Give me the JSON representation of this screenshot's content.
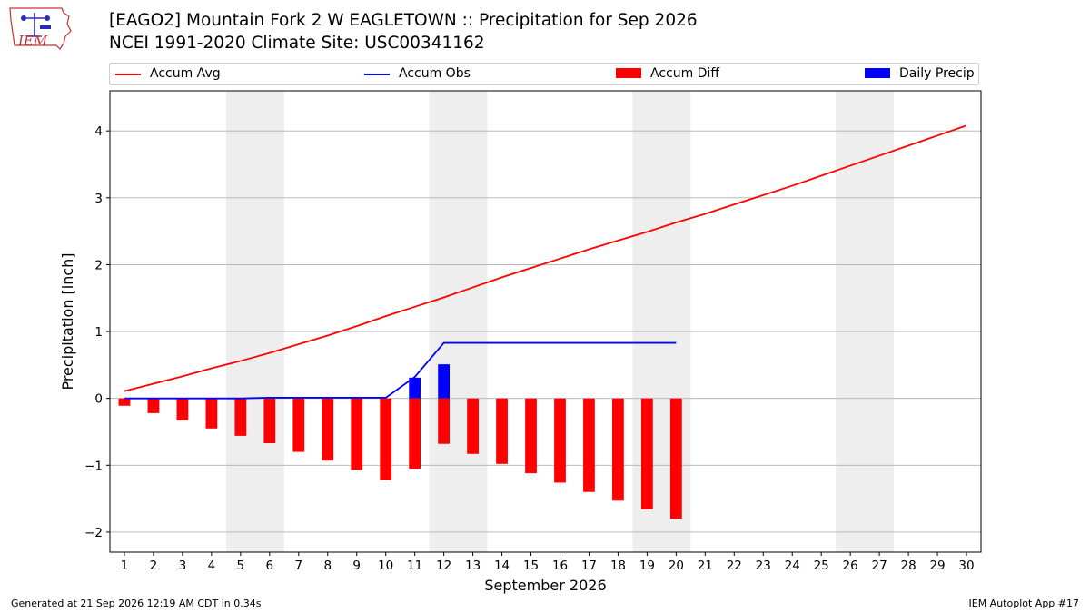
{
  "header": {
    "title": "[EAGO2] Mountain Fork 2 W EAGLETOWN :: Precipitation for Sep 2026",
    "subtitle": "NCEI 1991-2020 Climate Site: USC00341162",
    "logo_text": "IEM"
  },
  "footer": {
    "generated": "Generated at 21 Sep 2026 12:19 AM CDT in 0.34s",
    "app": "IEM Autoplot App #17"
  },
  "legend": {
    "accum_avg": "Accum Avg",
    "accum_obs": "Accum Obs",
    "accum_diff": "Accum Diff",
    "daily_precip": "Daily Precip"
  },
  "colors": {
    "accum_avg": "#ff0000",
    "accum_obs": "#0000ff",
    "accum_diff": "#ff0000",
    "daily_precip": "#0000ff",
    "weekend_shade": "#eeeeee",
    "grid": "#b0b0b0"
  },
  "chart_data": {
    "type": "bar",
    "title": "[EAGO2] Mountain Fork 2 W EAGLETOWN :: Precipitation for Sep 2026",
    "xlabel": "September 2026",
    "ylabel": "Precipitation [inch]",
    "xlim": [
      0.5,
      30.5
    ],
    "ylim": [
      -2.3,
      4.6
    ],
    "x_ticks": [
      1,
      2,
      3,
      4,
      5,
      6,
      7,
      8,
      9,
      10,
      11,
      12,
      13,
      14,
      15,
      16,
      17,
      18,
      19,
      20,
      21,
      22,
      23,
      24,
      25,
      26,
      27,
      28,
      29,
      30
    ],
    "y_ticks": [
      -2,
      -1,
      0,
      1,
      2,
      3,
      4
    ],
    "y_tick_labels": [
      "−2",
      "−1",
      "0",
      "1",
      "2",
      "3",
      "4"
    ],
    "grid": "horizontal",
    "legend_placement": "top",
    "weekend_shading": [
      [
        4.5,
        6.5
      ],
      [
        11.5,
        13.5
      ],
      [
        18.5,
        20.5
      ],
      [
        25.5,
        27.5
      ]
    ],
    "series": [
      {
        "name": "Accum Avg",
        "type": "line",
        "x": [
          1,
          2,
          3,
          4,
          5,
          6,
          7,
          8,
          9,
          10,
          11,
          12,
          13,
          14,
          15,
          16,
          17,
          18,
          19,
          20,
          21,
          22,
          23,
          24,
          25,
          26,
          27,
          28,
          29,
          30
        ],
        "values": [
          0.11,
          0.22,
          0.33,
          0.45,
          0.56,
          0.68,
          0.81,
          0.94,
          1.08,
          1.23,
          1.37,
          1.51,
          1.66,
          1.81,
          1.95,
          2.09,
          2.23,
          2.36,
          2.49,
          2.63,
          2.76,
          2.9,
          3.04,
          3.18,
          3.33,
          3.48,
          3.63,
          3.78,
          3.93,
          4.08
        ]
      },
      {
        "name": "Accum Obs",
        "type": "line",
        "x": [
          1,
          2,
          3,
          4,
          5,
          6,
          7,
          8,
          9,
          10,
          11,
          12,
          13,
          14,
          15,
          16,
          17,
          18,
          19,
          20
        ],
        "values": [
          0.0,
          0.0,
          0.0,
          0.0,
          0.0,
          0.01,
          0.01,
          0.01,
          0.01,
          0.01,
          0.32,
          0.83,
          0.83,
          0.83,
          0.83,
          0.83,
          0.83,
          0.83,
          0.83,
          0.83
        ]
      },
      {
        "name": "Accum Diff",
        "type": "bar",
        "x": [
          1,
          2,
          3,
          4,
          5,
          6,
          7,
          8,
          9,
          10,
          11,
          12,
          13,
          14,
          15,
          16,
          17,
          18,
          19,
          20
        ],
        "values": [
          -0.11,
          -0.22,
          -0.33,
          -0.45,
          -0.56,
          -0.67,
          -0.8,
          -0.93,
          -1.07,
          -1.22,
          -1.05,
          -0.68,
          -0.83,
          -0.98,
          -1.12,
          -1.26,
          -1.4,
          -1.53,
          -1.66,
          -1.8
        ]
      },
      {
        "name": "Daily Precip",
        "type": "bar",
        "x": [
          1,
          2,
          3,
          4,
          5,
          6,
          7,
          8,
          9,
          10,
          11,
          12,
          13,
          14,
          15,
          16,
          17,
          18,
          19,
          20
        ],
        "values": [
          0,
          0,
          0,
          0,
          0,
          0,
          0,
          0,
          0,
          0,
          0.31,
          0.51,
          0,
          0,
          0,
          0,
          0,
          0,
          0,
          0
        ]
      }
    ]
  }
}
